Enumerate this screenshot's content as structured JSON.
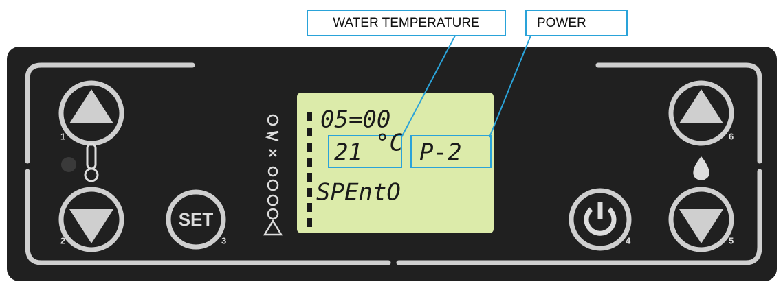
{
  "callouts": [
    "WATER TEMPERATURE",
    "POWER"
  ],
  "display": {
    "time": "05=00",
    "water_temperature": "21",
    "temperature_unit": "°C",
    "power": "P-2",
    "status": "SPEntO"
  },
  "buttons": {
    "set": "SET"
  },
  "button_numbers": [
    "1",
    "2",
    "3",
    "4",
    "5",
    "6"
  ]
}
